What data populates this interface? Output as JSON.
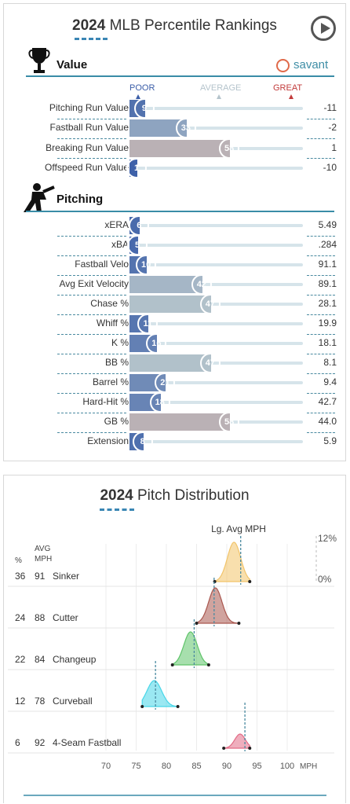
{
  "header": {
    "year": "2024",
    "title": "MLB Percentile Rankings"
  },
  "icons": {
    "play": "play-circle-icon",
    "value": "trophy-icon",
    "pitching": "pitcher-silhouette-icon",
    "savant": "baseball-icon"
  },
  "value_section": {
    "label": "Value",
    "brand": "savant"
  },
  "scale": {
    "poor": "POOR",
    "average": "AVERAGE",
    "great": "GREAT"
  },
  "pitching_section": {
    "label": "Pitching"
  },
  "colors": {
    "low": "#3b5fa8",
    "high": "#c23b3b",
    "mid": "#b9c7cc",
    "track": "#d6e4ea",
    "accent": "#3a86b4"
  },
  "chart_data": [
    {
      "type": "bar",
      "title": "2024 MLB Percentile Rankings",
      "groups": [
        {
          "name": "Value",
          "rows": [
            {
              "metric": "Pitching Run Value",
              "percentile": 9,
              "value": "-11"
            },
            {
              "metric": "Fastball Run Value",
              "percentile": 33,
              "value": "-2"
            },
            {
              "metric": "Breaking Run Value",
              "percentile": 58,
              "value": "1"
            },
            {
              "metric": "Offspeed Run Value",
              "percentile": 1,
              "value": "-10"
            }
          ]
        },
        {
          "name": "Pitching",
          "rows": [
            {
              "metric": "xERA",
              "percentile": 6,
              "value": "5.49"
            },
            {
              "metric": "xBA",
              "percentile": 5,
              "value": ".284"
            },
            {
              "metric": "Fastball Velo",
              "percentile": 10,
              "value": "91.1"
            },
            {
              "metric": "Avg Exit Velocity",
              "percentile": 42,
              "value": "89.1"
            },
            {
              "metric": "Chase %",
              "percentile": 47,
              "value": "28.1"
            },
            {
              "metric": "Whiff %",
              "percentile": 11,
              "value": "19.9"
            },
            {
              "metric": "K %",
              "percentile": 16,
              "value": "18.1"
            },
            {
              "metric": "BB %",
              "percentile": 47,
              "value": "8.1"
            },
            {
              "metric": "Barrel %",
              "percentile": 21,
              "value": "9.4"
            },
            {
              "metric": "Hard-Hit %",
              "percentile": 18,
              "value": "42.7"
            },
            {
              "metric": "GB %",
              "percentile": 58,
              "value": "44.0"
            },
            {
              "metric": "Extension",
              "percentile": 8,
              "value": "5.9"
            }
          ]
        }
      ],
      "xlim": [
        0,
        100
      ]
    },
    {
      "type": "area",
      "title": "2024 Pitch Distribution",
      "xlabel": "MPH",
      "xlim": [
        70,
        100
      ],
      "xticks": [
        70,
        75,
        80,
        85,
        90,
        95,
        100
      ],
      "y_scale_labels": [
        "12%",
        "0%"
      ],
      "league_avg_label": "Lg. Avg MPH",
      "col_headers": {
        "pct": "%",
        "mph": "AVG\nMPH"
      },
      "series": [
        {
          "name": "Sinker",
          "pct": 36,
          "avg_mph": 91,
          "mean": 91.2,
          "sd": 1.0,
          "min": 88.0,
          "max": 93.8,
          "lg_avg": 92.3,
          "color": "#f2c46a"
        },
        {
          "name": "Cutter",
          "pct": 24,
          "avg_mph": 88,
          "mean": 88.1,
          "sd": 1.0,
          "min": 85.0,
          "max": 92.0,
          "lg_avg": 87.9,
          "color": "#a9574f"
        },
        {
          "name": "Changeup",
          "pct": 22,
          "avg_mph": 84,
          "mean": 84.0,
          "sd": 1.0,
          "min": 81.0,
          "max": 87.0,
          "lg_avg": 84.6,
          "color": "#5fc46a"
        },
        {
          "name": "Curveball",
          "pct": 12,
          "avg_mph": 78,
          "mean": 78.0,
          "sd": 1.1,
          "min": 76.0,
          "max": 81.9,
          "lg_avg": 78.2,
          "color": "#47d6e8"
        },
        {
          "name": "4-Seam Fastball",
          "pct": 6,
          "avg_mph": 92,
          "mean": 92.2,
          "sd": 0.8,
          "min": 89.5,
          "max": 93.8,
          "lg_avg": 93.0,
          "color": "#e26b86"
        }
      ]
    }
  ],
  "distribution": {
    "year": "2024",
    "title": "Pitch Distribution"
  }
}
